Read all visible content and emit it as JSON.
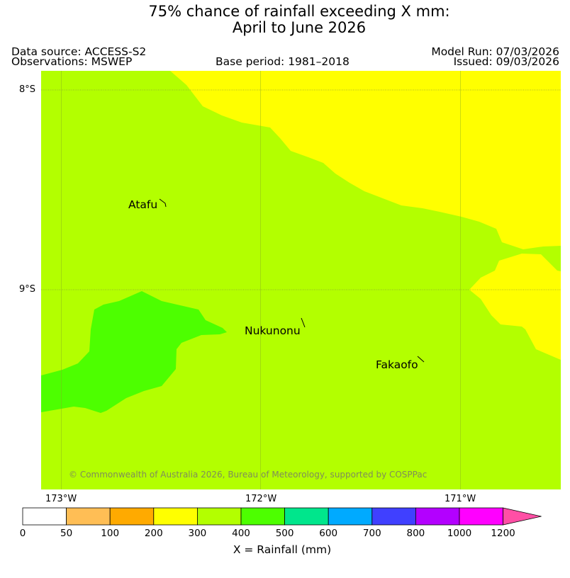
{
  "title": {
    "line1": "75% chance of rainfall exceeding X mm:",
    "line2": "April to June 2026"
  },
  "meta": {
    "data_source": "Data source: ACCESS-S2",
    "observations": "Observations: MSWEP",
    "base_period": "Base period: 1981–2018",
    "model_run": "Model Run: 07/03/2026",
    "issued": "Issued: 09/03/2026"
  },
  "map": {
    "lat_labels": [
      "8°S",
      "9°S"
    ],
    "lon_labels": [
      "173°W",
      "172°W",
      "171°W"
    ],
    "places": [
      "Atafu",
      "Nukunonu",
      "Fakaofo"
    ],
    "copyright": "© Commonwealth of Australia 2026, Bureau of Meteorology, supported by COSPPac",
    "region_colors": {
      "300_400": "#b3ff00",
      "200_300": "#ffff00",
      "400_500": "#4dff00"
    }
  },
  "colorbar": {
    "ticks": [
      "0",
      "50",
      "100",
      "200",
      "300",
      "400",
      "500",
      "600",
      "700",
      "800",
      "1000",
      "1200"
    ],
    "colors": [
      "#ffffff",
      "#ffbe55",
      "#ffaa00",
      "#ffff00",
      "#b3ff00",
      "#4dff00",
      "#00e68c",
      "#00aaff",
      "#4040ff",
      "#b300ff",
      "#ff00ff",
      "#ff4fa5"
    ],
    "label": "X = Rainfall (mm)"
  }
}
